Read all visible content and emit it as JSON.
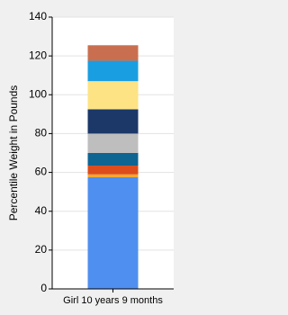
{
  "chart_data": {
    "type": "stacked_bar",
    "y_label": "Percentile Weight in Pounds",
    "categories": [
      "Girl 10 years 9 months"
    ],
    "series": [
      {
        "color": "#4f8ff0",
        "values": [
          57.5
        ]
      },
      {
        "color": "#f2a72c",
        "values": [
          1.5
        ]
      },
      {
        "color": "#dc4c1c",
        "values": [
          4.5
        ]
      },
      {
        "color": "#0e6592",
        "values": [
          6.5
        ]
      },
      {
        "color": "#bebebe",
        "values": [
          10
        ]
      },
      {
        "color": "#1b3868",
        "values": [
          12.5
        ]
      },
      {
        "color": "#fde384",
        "values": [
          14.5
        ]
      },
      {
        "color": "#1a9ee2",
        "values": [
          10.5
        ]
      },
      {
        "color": "#c96f4f",
        "values": [
          8
        ]
      }
    ],
    "ylim": [
      0,
      140
    ],
    "yticks": [
      0,
      20,
      40,
      60,
      80,
      100,
      120,
      140
    ],
    "grid": true
  }
}
